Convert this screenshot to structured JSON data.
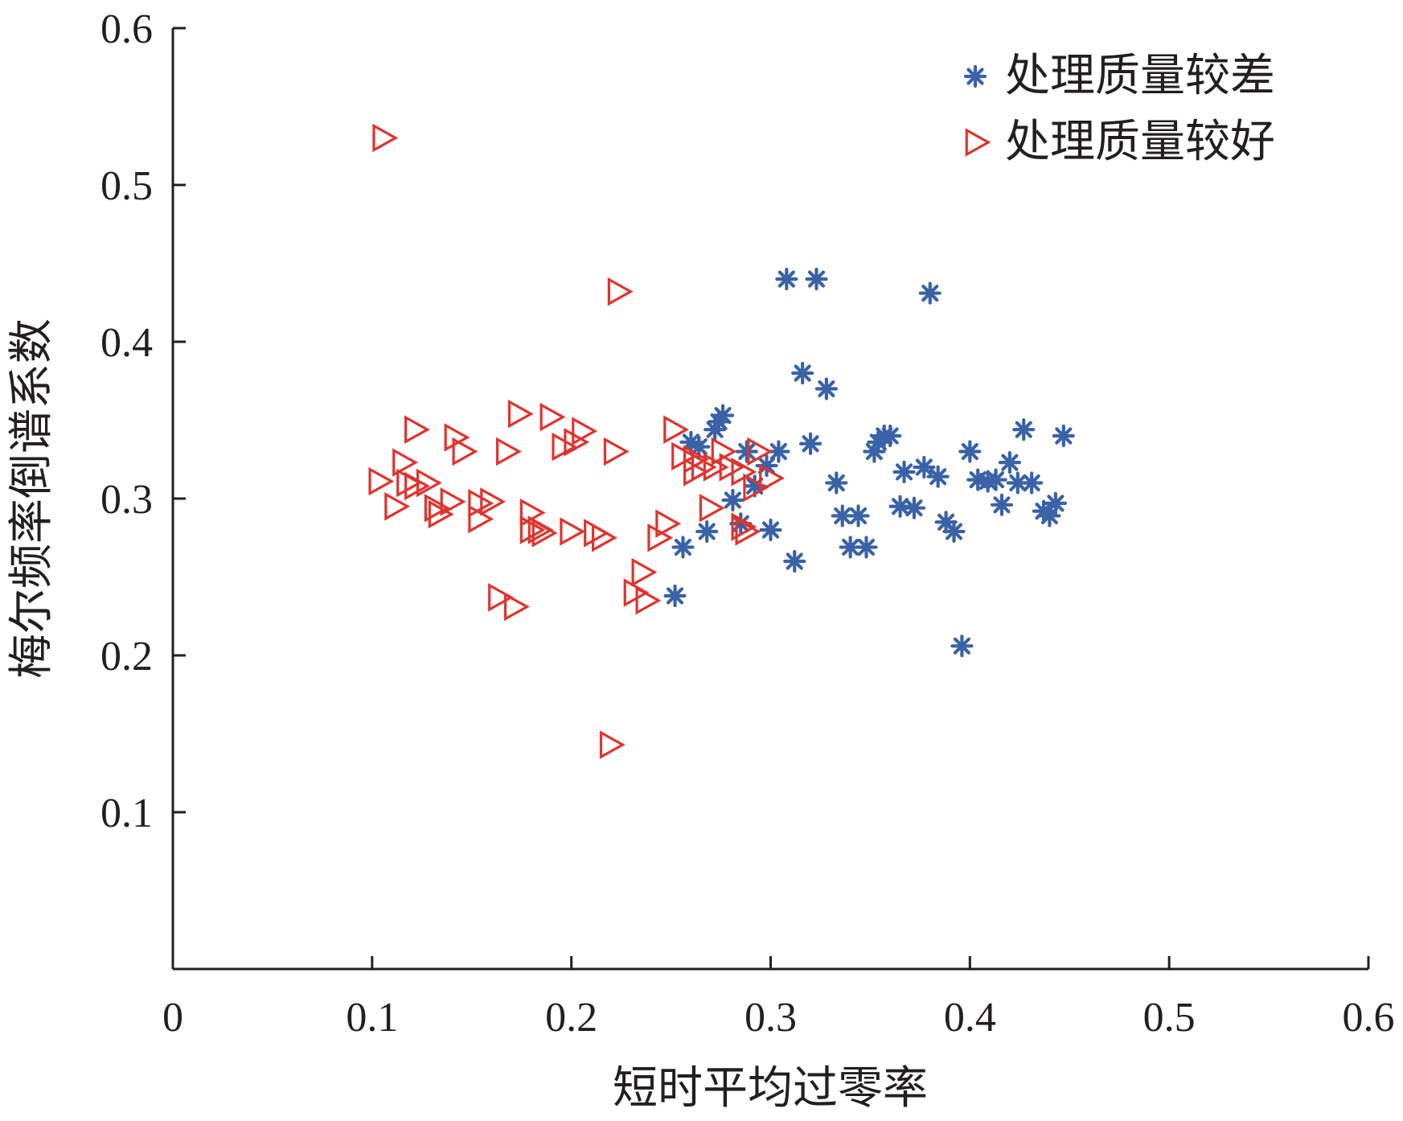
{
  "chart_data": {
    "type": "scatter",
    "xlabel": "短时平均过零率",
    "ylabel": "梅尔频率倒谱系数",
    "xlim": [
      0,
      0.6
    ],
    "ylim": [
      0,
      0.6
    ],
    "x_ticks": [
      "0",
      "0.1",
      "0.2",
      "0.3",
      "0.4",
      "0.5",
      "0.6"
    ],
    "y_ticks": [
      "0.1",
      "0.2",
      "0.3",
      "0.4",
      "0.5",
      "0.6"
    ],
    "grid": false,
    "legend_position": "top-right",
    "series": [
      {
        "name": "处理质量较差",
        "marker": "asterisk",
        "color": "#3a62a6",
        "points": [
          [
            0.308,
            0.44
          ],
          [
            0.323,
            0.44
          ],
          [
            0.38,
            0.431
          ],
          [
            0.316,
            0.38
          ],
          [
            0.328,
            0.37
          ],
          [
            0.276,
            0.353
          ],
          [
            0.274,
            0.349
          ],
          [
            0.272,
            0.344
          ],
          [
            0.427,
            0.344
          ],
          [
            0.447,
            0.34
          ],
          [
            0.357,
            0.34
          ],
          [
            0.36,
            0.34
          ],
          [
            0.354,
            0.336
          ],
          [
            0.26,
            0.336
          ],
          [
            0.264,
            0.333
          ],
          [
            0.32,
            0.335
          ],
          [
            0.288,
            0.33
          ],
          [
            0.304,
            0.33
          ],
          [
            0.4,
            0.33
          ],
          [
            0.352,
            0.33
          ],
          [
            0.42,
            0.323
          ],
          [
            0.298,
            0.321
          ],
          [
            0.377,
            0.32
          ],
          [
            0.367,
            0.317
          ],
          [
            0.384,
            0.314
          ],
          [
            0.404,
            0.312
          ],
          [
            0.409,
            0.311
          ],
          [
            0.413,
            0.312
          ],
          [
            0.431,
            0.31
          ],
          [
            0.424,
            0.31
          ],
          [
            0.333,
            0.31
          ],
          [
            0.292,
            0.308
          ],
          [
            0.281,
            0.299
          ],
          [
            0.416,
            0.296
          ],
          [
            0.443,
            0.297
          ],
          [
            0.365,
            0.295
          ],
          [
            0.372,
            0.294
          ],
          [
            0.437,
            0.292
          ],
          [
            0.336,
            0.289
          ],
          [
            0.344,
            0.289
          ],
          [
            0.44,
            0.289
          ],
          [
            0.388,
            0.285
          ],
          [
            0.285,
            0.284
          ],
          [
            0.392,
            0.279
          ],
          [
            0.268,
            0.279
          ],
          [
            0.3,
            0.28
          ],
          [
            0.256,
            0.269
          ],
          [
            0.34,
            0.269
          ],
          [
            0.348,
            0.269
          ],
          [
            0.312,
            0.26
          ],
          [
            0.252,
            0.238
          ],
          [
            0.396,
            0.206
          ]
        ]
      },
      {
        "name": "处理质量较好",
        "marker": "triangle-right",
        "color": "#e0332e",
        "points": [
          [
            0.106,
            0.53
          ],
          [
            0.224,
            0.432
          ],
          [
            0.174,
            0.354
          ],
          [
            0.19,
            0.352
          ],
          [
            0.122,
            0.344
          ],
          [
            0.206,
            0.343
          ],
          [
            0.252,
            0.344
          ],
          [
            0.142,
            0.339
          ],
          [
            0.202,
            0.336
          ],
          [
            0.196,
            0.333
          ],
          [
            0.146,
            0.33
          ],
          [
            0.168,
            0.33
          ],
          [
            0.222,
            0.33
          ],
          [
            0.276,
            0.33
          ],
          [
            0.294,
            0.33
          ],
          [
            0.256,
            0.327
          ],
          [
            0.262,
            0.325
          ],
          [
            0.116,
            0.323
          ],
          [
            0.266,
            0.32
          ],
          [
            0.272,
            0.32
          ],
          [
            0.28,
            0.32
          ],
          [
            0.262,
            0.317
          ],
          [
            0.286,
            0.317
          ],
          [
            0.104,
            0.311
          ],
          [
            0.128,
            0.31
          ],
          [
            0.122,
            0.308
          ],
          [
            0.118,
            0.31
          ],
          [
            0.3,
            0.313
          ],
          [
            0.292,
            0.307
          ],
          [
            0.16,
            0.298
          ],
          [
            0.14,
            0.298
          ],
          [
            0.154,
            0.297
          ],
          [
            0.112,
            0.295
          ],
          [
            0.132,
            0.294
          ],
          [
            0.27,
            0.294
          ],
          [
            0.134,
            0.29
          ],
          [
            0.154,
            0.287
          ],
          [
            0.18,
            0.291
          ],
          [
            0.18,
            0.28
          ],
          [
            0.184,
            0.28
          ],
          [
            0.186,
            0.278
          ],
          [
            0.2,
            0.279
          ],
          [
            0.212,
            0.278
          ],
          [
            0.216,
            0.275
          ],
          [
            0.248,
            0.284
          ],
          [
            0.286,
            0.282
          ],
          [
            0.288,
            0.279
          ],
          [
            0.244,
            0.275
          ],
          [
            0.236,
            0.253
          ],
          [
            0.232,
            0.24
          ],
          [
            0.238,
            0.235
          ],
          [
            0.164,
            0.237
          ],
          [
            0.172,
            0.231
          ],
          [
            0.22,
            0.143
          ]
        ]
      }
    ]
  }
}
